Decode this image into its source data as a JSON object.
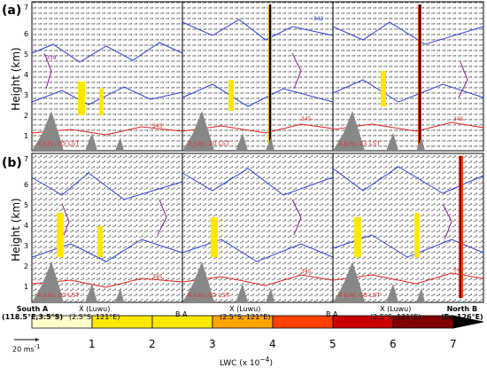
{
  "figure": {
    "panel_a_label": "(a)",
    "panel_b_label": "(b)",
    "ylabel": "Height (km)",
    "yticks": [
      "1",
      "2",
      "3",
      "4",
      "5",
      "6",
      "7"
    ],
    "panels_a": [
      {
        "day": "3 July, 05 LST",
        "contour": "345"
      },
      {
        "day": "3 July, 20 LST",
        "contour": "345"
      },
      {
        "day": "3 July, 23 LST",
        "contour": "345"
      }
    ],
    "panels_b": [
      {
        "day": "4 July, 02 LST",
        "contour": "345"
      },
      {
        "day": "4 July, 05 LST",
        "contour": "345"
      },
      {
        "day": "4 July, 08 LST",
        "contour": "345"
      }
    ],
    "contour_blue": "342",
    "contour_purple": "339"
  },
  "xaxis": {
    "south_a": "South A",
    "south_coord": "(118.5°E,3.5°S)",
    "x_marker": "X (Luwu)",
    "x_coord": "(2.5°S, 121°E)",
    "ba": "B A",
    "north_b": "North B",
    "north_coord": "(Eq,126°E)"
  },
  "scale_arrow": "20 ms",
  "scale_arrow_sup": "-1",
  "colorbar": {
    "title": "LWC (x 10",
    "title_sup": "−4",
    "title_end": ")",
    "ticks": [
      "1",
      "2",
      "3",
      "4",
      "5",
      "6",
      "7"
    ],
    "colors": [
      "#ffffcc",
      "#ffe800",
      "#ffa500",
      "#ff4000",
      "#cc0000",
      "#800000",
      "#400000",
      "#000000"
    ]
  }
}
